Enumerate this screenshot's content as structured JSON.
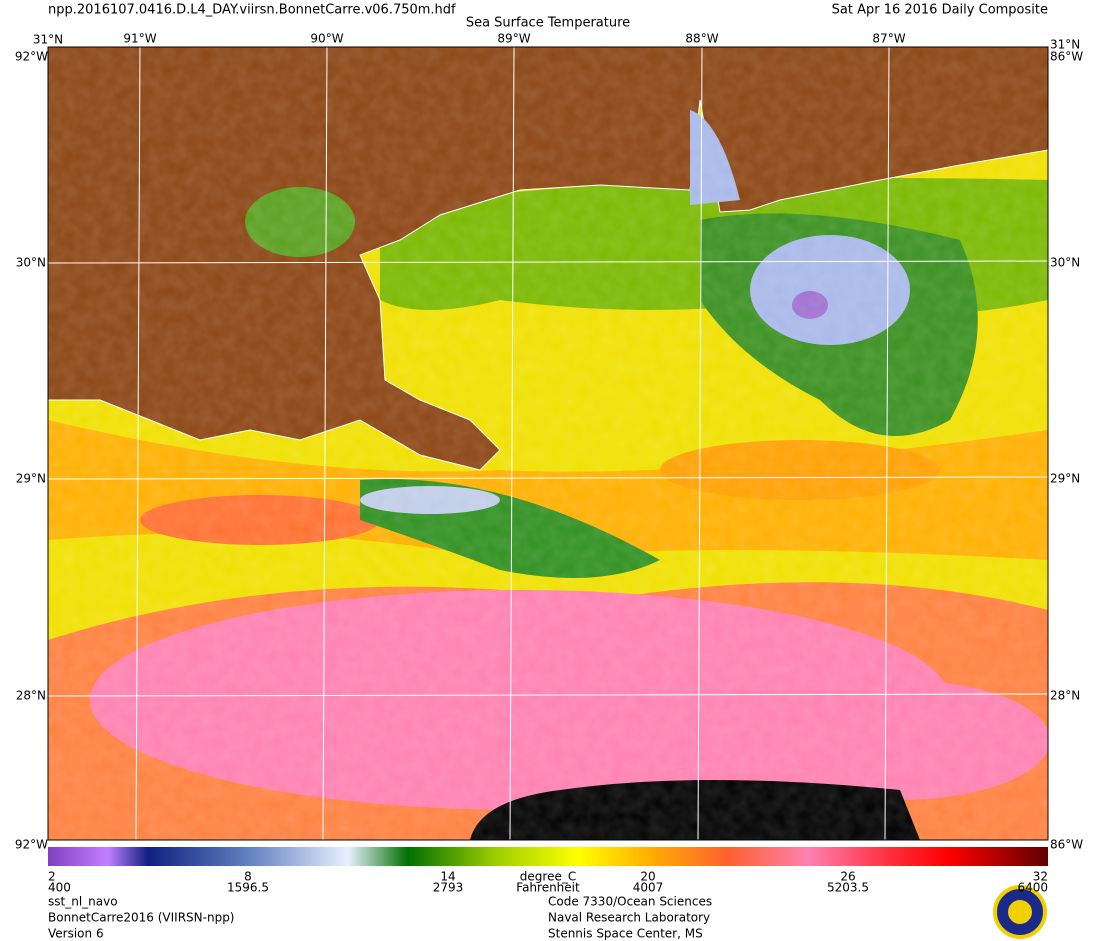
{
  "header": {
    "file": "npp.2016107.0416.D.L4_DAY.viirsn.BonnetCarre.v06.750m.hdf",
    "title": "Sea Surface Temperature",
    "date": "Sat Apr 16 2016 Daily Composite"
  },
  "map": {
    "longitude_labels": [
      "91°W",
      "90°W",
      "89°W",
      "88°W",
      "87°W"
    ],
    "latitude_labels": [
      "31°N",
      "30°N",
      "29°N",
      "28°N"
    ],
    "corner_labels": [
      "92°W",
      "92°W",
      "86°W",
      "86°W"
    ]
  },
  "colorbar": {
    "range": [
      2,
      32
    ],
    "celsius_ticks": [
      2,
      8,
      14,
      20,
      26,
      32
    ],
    "fahrenheit_ticks": [
      400,
      1596.5,
      2793,
      4007,
      5203.5,
      6400
    ],
    "celsius_unit": "degree_C",
    "fahrenheit_unit": "Fahrenheit"
  },
  "footer": {
    "left": [
      "sst_nl_navo",
      "BonnetCarre2016 (VIIRSN-npp)",
      "Version 6"
    ],
    "center": [
      "Code 7330/Ocean Sciences",
      "Naval Research Laboratory",
      "Stennis Space Center, MS"
    ]
  }
}
